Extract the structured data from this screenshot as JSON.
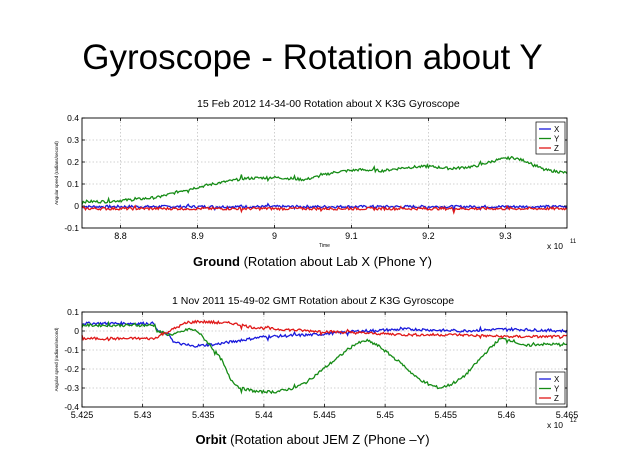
{
  "slide_title": "Gyroscope - Rotation about Y",
  "captions": [
    {
      "bold": "Ground",
      "rest": " (Rotation about Lab X (Phone Y)"
    },
    {
      "bold": "Orbit",
      "rest": " (Rotation about JEM Z (Phone –Y)"
    }
  ],
  "colors": {
    "x": "#1a1adc",
    "y": "#168c16",
    "z": "#e01818",
    "grid": "#c4c4c4"
  },
  "chart_data": [
    {
      "type": "line",
      "title": "15 Feb 2012 14-34-00 Rotation about X K3G Gyroscope",
      "xlabel": "Time",
      "ylabel": "Angular speed (radians/second)",
      "x_multiplier": "x 10",
      "x_exponent": "11",
      "xlim": [
        8.75,
        9.38
      ],
      "ylim": [
        -0.1,
        0.4
      ],
      "xticks": [
        8.8,
        8.9,
        9,
        9.1,
        9.2,
        9.3
      ],
      "xtick_labels": [
        "8.8",
        "8.9",
        "9",
        "9.1",
        "9.2",
        "9.3"
      ],
      "yticks": [
        -0.1,
        0,
        0.1,
        0.2,
        0.3,
        0.4
      ],
      "ytick_labels": [
        "-0.1",
        "0",
        "0.1",
        "0.2",
        "0.3",
        "0.4"
      ],
      "grid": true,
      "legend": "top-right",
      "series": [
        {
          "name": "X",
          "color_key": "x",
          "x": [
            8.75,
            9.38
          ],
          "y": [
            -0.003,
            -0.003
          ]
        },
        {
          "name": "Y",
          "color_key": "y",
          "x": [
            8.75,
            8.78,
            8.82,
            8.85,
            8.88,
            8.92,
            8.96,
            9.0,
            9.04,
            9.08,
            9.11,
            9.14,
            9.17,
            9.2,
            9.23,
            9.26,
            9.29,
            9.31,
            9.33,
            9.35,
            9.38
          ],
          "y": [
            0.02,
            0.02,
            0.03,
            0.04,
            0.07,
            0.1,
            0.125,
            0.13,
            0.12,
            0.155,
            0.165,
            0.16,
            0.175,
            0.18,
            0.17,
            0.18,
            0.21,
            0.22,
            0.2,
            0.165,
            0.15
          ]
        },
        {
          "name": "Z",
          "color_key": "z",
          "x": [
            8.75,
            9.38
          ],
          "y": [
            -0.012,
            -0.012
          ]
        }
      ]
    },
    {
      "type": "line",
      "title": "1 Nov 2011 15-49-02 GMT Rotation about Z K3G Gyroscope",
      "xlabel": "",
      "ylabel": "Angular speed (radians/second)",
      "x_multiplier": "x 10",
      "x_exponent": "12",
      "xlim": [
        5.425,
        5.465
      ],
      "ylim": [
        -0.4,
        0.1
      ],
      "xticks": [
        5.425,
        5.43,
        5.435,
        5.44,
        5.445,
        5.45,
        5.455,
        5.46,
        5.465
      ],
      "xtick_labels": [
        "5.425",
        "5.43",
        "5.435",
        "5.44",
        "5.445",
        "5.45",
        "5.455",
        "5.46",
        "5.465"
      ],
      "yticks": [
        -0.4,
        -0.3,
        -0.2,
        -0.1,
        0,
        0.1
      ],
      "ytick_labels": [
        "-0.4",
        "-0.3",
        "-0.2",
        "-0.1",
        "0",
        "0.1"
      ],
      "grid": true,
      "legend": "bottom-right",
      "series": [
        {
          "name": "X",
          "color_key": "x",
          "x": [
            5.425,
            5.431,
            5.4312,
            5.4322,
            5.4326,
            5.434,
            5.436,
            5.438,
            5.44,
            5.444,
            5.448,
            5.452,
            5.456,
            5.46,
            5.465
          ],
          "y": [
            0.04,
            0.04,
            0.0,
            -0.02,
            -0.06,
            -0.08,
            -0.07,
            -0.05,
            -0.03,
            -0.02,
            0.0,
            0.01,
            0.0,
            0.01,
            0.0
          ]
        },
        {
          "name": "Y",
          "color_key": "y",
          "x": [
            5.425,
            5.431,
            5.4312,
            5.4322,
            5.433,
            5.4338,
            5.4345,
            5.4355,
            5.4365,
            5.4372,
            5.438,
            5.4395,
            5.441,
            5.4425,
            5.4435,
            5.4445,
            5.4455,
            5.4465,
            5.4475,
            5.4485,
            5.4495,
            5.4505,
            5.4515,
            5.4525,
            5.4535,
            5.4545,
            5.4555,
            5.4565,
            5.4575,
            5.4585,
            5.4595,
            5.4605,
            5.4615,
            5.4625,
            5.465
          ],
          "y": [
            0.03,
            0.03,
            0.0,
            -0.02,
            -0.01,
            0.01,
            0.0,
            -0.07,
            -0.15,
            -0.25,
            -0.3,
            -0.32,
            -0.32,
            -0.3,
            -0.27,
            -0.22,
            -0.17,
            -0.12,
            -0.07,
            -0.05,
            -0.08,
            -0.13,
            -0.18,
            -0.24,
            -0.28,
            -0.3,
            -0.28,
            -0.24,
            -0.17,
            -0.1,
            -0.04,
            -0.05,
            -0.08,
            -0.07,
            -0.07
          ]
        },
        {
          "name": "Z",
          "color_key": "z",
          "x": [
            5.425,
            5.431,
            5.4312,
            5.4322,
            5.4335,
            5.4345,
            5.436,
            5.4375,
            5.439,
            5.441,
            5.444,
            5.448,
            5.452,
            5.456,
            5.46,
            5.465
          ],
          "y": [
            -0.04,
            -0.04,
            -0.03,
            0.0,
            0.04,
            0.05,
            0.045,
            0.04,
            0.02,
            0.01,
            0.0,
            -0.01,
            -0.02,
            -0.02,
            -0.03,
            -0.03
          ]
        }
      ]
    }
  ]
}
